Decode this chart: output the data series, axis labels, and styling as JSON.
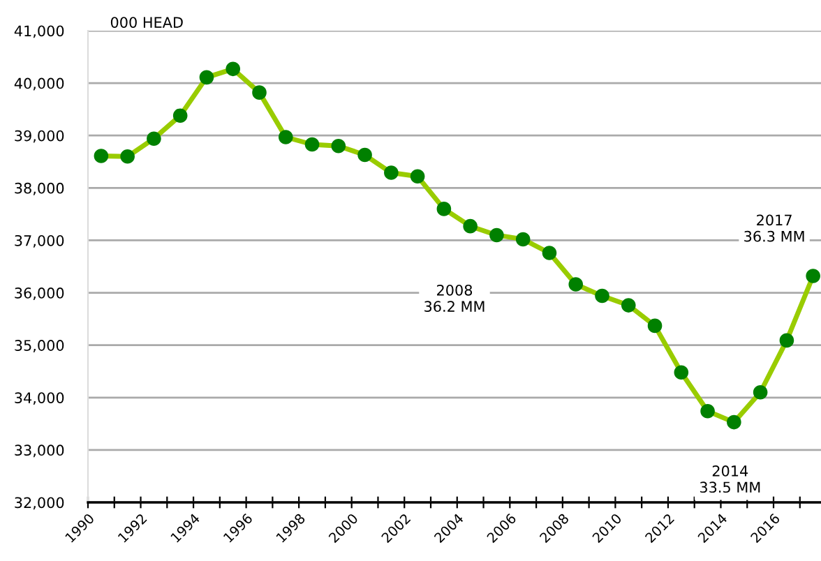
{
  "chart_data": {
    "type": "line",
    "ylabel": "000 HEAD",
    "x": [
      1990.5,
      1991.5,
      1992.5,
      1993.5,
      1994.5,
      1995.5,
      1996.5,
      1997.5,
      1998.5,
      1999.5,
      2000.5,
      2001.5,
      2002.5,
      2003.5,
      2004.5,
      2005.5,
      2006.5,
      2007.5,
      2008.5,
      2009.5,
      2010.5,
      2011.5,
      2012.5,
      2013.5,
      2014.5,
      2015.5,
      2016.5,
      2017.5
    ],
    "series": [
      {
        "color": "#99cc00",
        "colors": [
          "#008000",
          "#008000",
          "#008000",
          "#008000",
          "#008000",
          "#008000",
          "#008000",
          "#008000",
          "#008000",
          "#008000",
          "#008000",
          "#008000",
          "#008000",
          "#008000",
          "#008000",
          "#008000",
          "#008000",
          "#008000",
          "#008000",
          "#008000",
          "#008000",
          "#008000",
          "#008000",
          "#008000",
          "#008000",
          "#008000",
          "#008000",
          "#008000"
        ],
        "values": [
          38610,
          38600,
          38940,
          39380,
          40110,
          40270,
          39820,
          38970,
          38830,
          38800,
          38630,
          38290,
          38220,
          37600,
          37270,
          37100,
          37020,
          36760,
          36160,
          35940,
          35760,
          35370,
          34480,
          33740,
          33530,
          34100,
          35090,
          36320
        ]
      }
    ],
    "marker": "circle",
    "line_style": "solid",
    "grid": "y",
    "legend": false,
    "xlim": [
      1990,
      2017.8
    ],
    "ylim": [
      32000,
      41000
    ],
    "xticks": [
      {
        "value": 1990,
        "label": "1990"
      },
      {
        "value": 1991,
        "label": null
      },
      {
        "value": 1992,
        "label": "1992"
      },
      {
        "value": 1993,
        "label": null
      },
      {
        "value": 1994,
        "label": "1994"
      },
      {
        "value": 1995,
        "label": null
      },
      {
        "value": 1996,
        "label": "1996"
      },
      {
        "value": 1997,
        "label": null
      },
      {
        "value": 1998,
        "label": "1998"
      },
      {
        "value": 1999,
        "label": null
      },
      {
        "value": 2000,
        "label": "2000"
      },
      {
        "value": 2001,
        "label": null
      },
      {
        "value": 2002,
        "label": "2002"
      },
      {
        "value": 2003,
        "label": null
      },
      {
        "value": 2004,
        "label": "2004"
      },
      {
        "value": 2005,
        "label": null
      },
      {
        "value": 2006,
        "label": "2006"
      },
      {
        "value": 2007,
        "label": null
      },
      {
        "value": 2008,
        "label": "2008"
      },
      {
        "value": 2009,
        "label": null
      },
      {
        "value": 2010,
        "label": "2010"
      },
      {
        "value": 2011,
        "label": null
      },
      {
        "value": 2012,
        "label": "2012"
      },
      {
        "value": 2013,
        "label": null
      },
      {
        "value": 2014,
        "label": "2014"
      },
      {
        "value": 2015,
        "label": null
      },
      {
        "value": 2016,
        "label": "2016"
      },
      {
        "value": 2017,
        "label": null
      }
    ],
    "yticks": [
      {
        "value": 32000,
        "label": "32,000"
      },
      {
        "value": 33000,
        "label": "33,000"
      },
      {
        "value": 34000,
        "label": "34,000"
      },
      {
        "value": 35000,
        "label": "35,000"
      },
      {
        "value": 36000,
        "label": "36,000"
      },
      {
        "value": 37000,
        "label": "37,000"
      },
      {
        "value": 38000,
        "label": "38,000"
      },
      {
        "value": 39000,
        "label": "39,000"
      },
      {
        "value": 40000,
        "label": "40,000"
      },
      {
        "value": 41000,
        "label": "41,000"
      }
    ],
    "annotations": [
      "2008\n36.2 MM",
      {
        "text": "2014\n33.5 MM",
        "x": 2014.5,
        "y": 33530
      },
      {
        "text": "2017\n36.3 MM",
        "x": 2017.5,
        "y": 36320
      }
    ]
  }
}
